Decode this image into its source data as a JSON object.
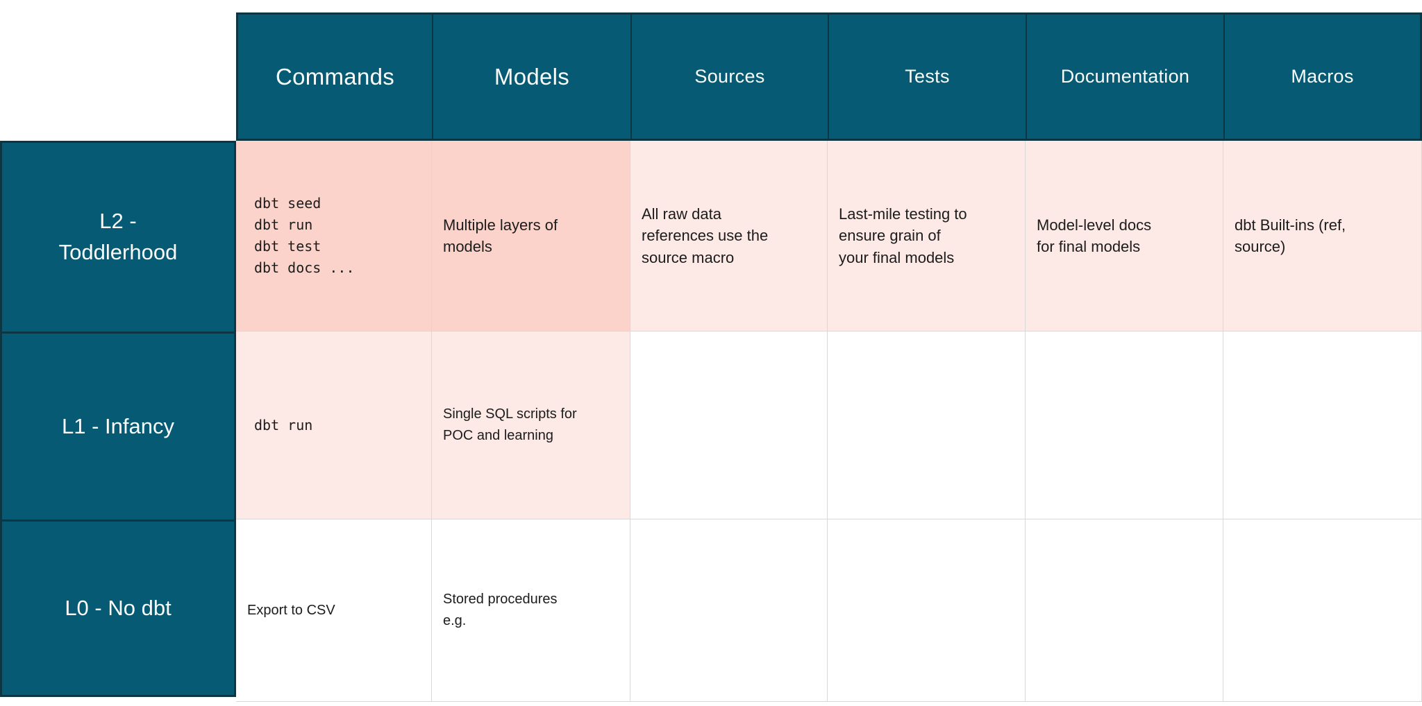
{
  "colors": {
    "header_teal": "#065a73",
    "dark_border": "#0c3642",
    "strong_pink": "#fbd3ca",
    "light_pink": "#fde9e5",
    "light_gray_border": "#d8d8d8",
    "header_text": "#fafdfd",
    "body_text": "#1c1c1c"
  },
  "table": {
    "column_headers": [
      "Commands",
      "Models",
      "Sources",
      "Tests",
      "Documentation",
      "Macros"
    ],
    "rows": [
      {
        "label": "L2 -\nToddlerhood",
        "cells": [
          {
            "code": [
              "dbt seed",
              "dbt run",
              "dbt test",
              "dbt docs ..."
            ]
          },
          {
            "text": "Multiple layers of\nmodels"
          },
          {
            "text": "All raw data\nreferences use the\nsource macro"
          },
          {
            "text": "Last-mile testing to\nensure grain of\nyour final models"
          },
          {
            "text": "Model-level docs\nfor final models"
          },
          {
            "text": "dbt Built-ins (ref,\nsource)"
          }
        ]
      },
      {
        "label": "L1 - Infancy",
        "cells": [
          {
            "code": [
              "dbt run"
            ]
          },
          {
            "text": "Single SQL scripts for\nPOC and learning"
          },
          {
            "text": ""
          },
          {
            "text": ""
          },
          {
            "text": ""
          },
          {
            "text": ""
          }
        ]
      },
      {
        "label": "L0 - No dbt",
        "cells": [
          {
            "text": "Export to CSV"
          },
          {
            "text": "Stored procedures\ne.g."
          },
          {
            "text": ""
          },
          {
            "text": ""
          },
          {
            "text": ""
          },
          {
            "text": ""
          }
        ]
      }
    ]
  }
}
